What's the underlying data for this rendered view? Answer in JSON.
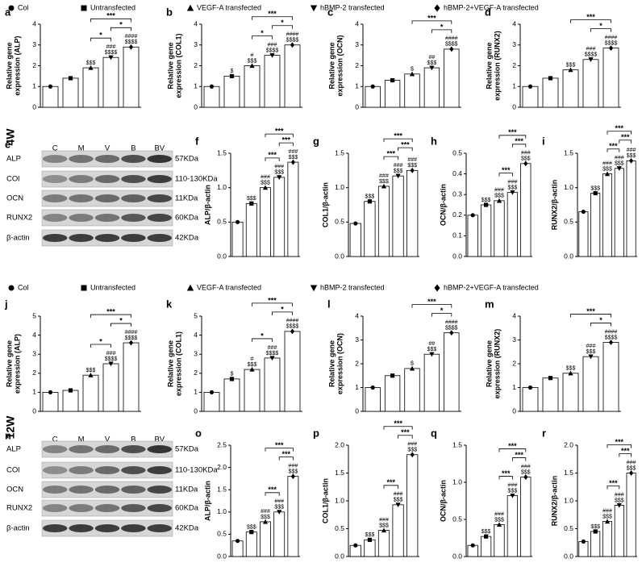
{
  "legend": [
    "Col",
    "Untransfected",
    "VEGF-A transfected",
    "hBMP-2 transfected",
    "hBMP-2+VEGF-A transfected"
  ],
  "row_labels": [
    "4W",
    "12W"
  ],
  "blots": [
    {
      "panel": "e",
      "lanes": [
        "C",
        "M",
        "V",
        "B",
        "BV"
      ],
      "proteins": [
        "ALP",
        "COl",
        "OCN",
        "RUNX2",
        "β-actin"
      ],
      "sizes": [
        "57KDa",
        "110-130KDa",
        "11KDa",
        "60KDa",
        "42KDa"
      ]
    },
    {
      "panel": "n",
      "lanes": [
        "C",
        "M",
        "V",
        "B",
        "BV"
      ],
      "proteins": [
        "ALP",
        "COl",
        "OCN",
        "RUNX2",
        "β-actin"
      ],
      "sizes": [
        "57KDa",
        "110-130KDa",
        "11KDa",
        "60KDa",
        "42KDa"
      ]
    }
  ],
  "chart_data": [
    {
      "type": "bar",
      "panel": "a",
      "ylabel": [
        "Relative gene",
        "expression (ALP)"
      ],
      "ylim": [
        0,
        4
      ],
      "yticks": [
        0,
        1,
        2,
        3,
        4
      ],
      "values": [
        1.0,
        1.4,
        1.9,
        2.4,
        2.9
      ],
      "bar_labels": [
        [],
        [],
        [
          "$$$"
        ],
        [
          "###",
          "$$$$"
        ],
        [
          "####",
          "$$$$"
        ]
      ],
      "brackets": [
        {
          "from": 2,
          "to": 3,
          "label": "*"
        },
        {
          "from": 3,
          "to": 4,
          "label": "*"
        },
        {
          "from": 2,
          "to": 4,
          "label": "***"
        }
      ]
    },
    {
      "type": "bar",
      "panel": "b",
      "ylabel": [
        "Relative gene",
        "expression (COL1)"
      ],
      "ylim": [
        0,
        4
      ],
      "yticks": [
        0,
        1,
        2,
        3,
        4
      ],
      "values": [
        1.0,
        1.5,
        2.0,
        2.5,
        3.0
      ],
      "bar_labels": [
        [],
        [
          "$"
        ],
        [
          "#",
          "$$$"
        ],
        [
          "###",
          "$$$$"
        ],
        [
          "####",
          "$$$$"
        ]
      ],
      "brackets": [
        {
          "from": 2,
          "to": 3,
          "label": "*"
        },
        {
          "from": 3,
          "to": 4,
          "label": "*"
        },
        {
          "from": 2,
          "to": 4,
          "label": "***"
        }
      ]
    },
    {
      "type": "bar",
      "panel": "c",
      "ylabel": [
        "Relative gene",
        "expression (OCN)"
      ],
      "ylim": [
        0,
        4
      ],
      "yticks": [
        0,
        1,
        2,
        3,
        4
      ],
      "values": [
        1.0,
        1.3,
        1.6,
        1.9,
        2.8
      ],
      "bar_labels": [
        [],
        [],
        [
          "$"
        ],
        [
          "##",
          "$$$"
        ],
        [
          "####",
          "$$$$"
        ]
      ],
      "brackets": [
        {
          "from": 3,
          "to": 4,
          "label": "*"
        },
        {
          "from": 2,
          "to": 4,
          "label": "***"
        }
      ]
    },
    {
      "type": "bar",
      "panel": "d",
      "ylabel": [
        "Relative gene",
        "expression (RUNX2)"
      ],
      "ylim": [
        0,
        4
      ],
      "yticks": [
        0,
        1,
        2,
        3,
        4
      ],
      "values": [
        1.0,
        1.4,
        1.8,
        2.3,
        2.85
      ],
      "bar_labels": [
        [],
        [],
        [
          "$$$"
        ],
        [
          "###",
          "$$$$"
        ],
        [
          "####",
          "$$$$"
        ]
      ],
      "brackets": [
        {
          "from": 3,
          "to": 4,
          "label": "*"
        },
        {
          "from": 2,
          "to": 4,
          "label": "***"
        }
      ]
    },
    {
      "type": "bar",
      "panel": "f",
      "ylabel": [
        "ALP/β-actin"
      ],
      "ylim": [
        0,
        1.5
      ],
      "yticks": [
        {
          "value": 0,
          "label": "0.0"
        },
        0.5,
        {
          "value": 1,
          "label": "1.0"
        },
        1.5
      ],
      "values": [
        0.5,
        0.77,
        1.0,
        1.15,
        1.37
      ],
      "bar_labels": [
        [],
        [
          "$$$"
        ],
        [
          "###",
          "$$$"
        ],
        [
          "###",
          "$$$"
        ],
        [
          "###",
          "$$$"
        ]
      ],
      "brackets": [
        {
          "from": 2,
          "to": 3,
          "label": "***"
        },
        {
          "from": 3,
          "to": 4,
          "label": "***"
        },
        {
          "from": 2,
          "to": 4,
          "label": "***"
        }
      ]
    },
    {
      "type": "bar",
      "panel": "g",
      "ylabel": [
        "COL1/β-actin"
      ],
      "ylim": [
        0,
        1.5
      ],
      "yticks": [
        {
          "value": 0,
          "label": "0.0"
        },
        0.5,
        {
          "value": 1,
          "label": "1.0"
        },
        1.5
      ],
      "values": [
        0.48,
        0.8,
        1.02,
        1.17,
        1.25
      ],
      "bar_labels": [
        [],
        [
          "$$$"
        ],
        [
          "###",
          "$$$"
        ],
        [
          "###",
          "$$$"
        ],
        [
          "###",
          "$$$"
        ]
      ],
      "brackets": [
        {
          "from": 2,
          "to": 3,
          "label": "***"
        },
        {
          "from": 3,
          "to": 4,
          "label": "***"
        },
        {
          "from": 2,
          "to": 4,
          "label": "***"
        }
      ]
    },
    {
      "type": "bar",
      "panel": "h",
      "ylabel": [
        "OCN/β-actin"
      ],
      "ylim": [
        0,
        0.5
      ],
      "yticks": [
        {
          "value": 0,
          "label": "0.0"
        },
        0.1,
        0.2,
        0.3,
        0.4,
        0.5
      ],
      "values": [
        0.2,
        0.25,
        0.27,
        0.31,
        0.45
      ],
      "bar_labels": [
        [],
        [
          "$$$"
        ],
        [
          "###",
          "$$$"
        ],
        [
          "###",
          "$$$"
        ],
        [
          "###",
          "$$$"
        ]
      ],
      "brackets": [
        {
          "from": 2,
          "to": 3,
          "label": "***"
        },
        {
          "from": 3,
          "to": 4,
          "label": "***"
        },
        {
          "from": 2,
          "to": 4,
          "label": "***"
        }
      ]
    },
    {
      "type": "bar",
      "panel": "i",
      "ylabel": [
        "RUNX2/β-actin"
      ],
      "ylim": [
        0,
        1.5
      ],
      "yticks": [
        {
          "value": 0,
          "label": "0.0"
        },
        0.5,
        {
          "value": 1,
          "label": "1.0"
        },
        1.5
      ],
      "values": [
        0.65,
        0.92,
        1.2,
        1.28,
        1.39
      ],
      "bar_labels": [
        [],
        [
          "$$$"
        ],
        [
          "###",
          "$$$"
        ],
        [
          "###",
          "$$$"
        ],
        [
          "###",
          "$$$"
        ]
      ],
      "brackets": [
        {
          "from": 2,
          "to": 3,
          "label": "***"
        },
        {
          "from": 3,
          "to": 4,
          "label": "***"
        },
        {
          "from": 2,
          "to": 4,
          "label": "***"
        }
      ]
    },
    {
      "type": "bar",
      "panel": "j",
      "ylabel": [
        "Relative gene",
        "expression (ALP)"
      ],
      "ylim": [
        0,
        5
      ],
      "yticks": [
        0,
        1,
        2,
        3,
        4,
        5
      ],
      "values": [
        1.0,
        1.1,
        1.9,
        2.5,
        3.6
      ],
      "bar_labels": [
        [],
        [],
        [
          "$$$"
        ],
        [
          "###",
          "$$$$"
        ],
        [
          "####",
          "$$$$"
        ]
      ],
      "brackets": [
        {
          "from": 2,
          "to": 3,
          "label": "*"
        },
        {
          "from": 3,
          "to": 4,
          "label": "*"
        },
        {
          "from": 2,
          "to": 4,
          "label": "***"
        }
      ]
    },
    {
      "type": "bar",
      "panel": "k",
      "ylabel": [
        "Relative gene",
        "expression (COL1)"
      ],
      "ylim": [
        0,
        5
      ],
      "yticks": [
        0,
        1,
        2,
        3,
        4,
        5
      ],
      "values": [
        1.0,
        1.7,
        2.2,
        2.8,
        4.2
      ],
      "bar_labels": [
        [],
        [
          "$"
        ],
        [
          "#",
          "$$$"
        ],
        [
          "###",
          "$$$$"
        ],
        [
          "####",
          "$$$$"
        ]
      ],
      "brackets": [
        {
          "from": 2,
          "to": 3,
          "label": "*"
        },
        {
          "from": 3,
          "to": 4,
          "label": "*"
        },
        {
          "from": 2,
          "to": 4,
          "label": "***"
        }
      ]
    },
    {
      "type": "bar",
      "panel": "l",
      "ylabel": [
        "Relative gene",
        "expression (OCN)"
      ],
      "ylim": [
        0,
        4
      ],
      "yticks": [
        0,
        1,
        2,
        3,
        4
      ],
      "values": [
        1.0,
        1.5,
        1.8,
        2.4,
        3.3
      ],
      "bar_labels": [
        [],
        [],
        [
          "$"
        ],
        [
          "##",
          "$$$"
        ],
        [
          "####",
          "$$$$"
        ]
      ],
      "brackets": [
        {
          "from": 3,
          "to": 4,
          "label": "*"
        },
        {
          "from": 2,
          "to": 4,
          "label": "***"
        }
      ]
    },
    {
      "type": "bar",
      "panel": "m",
      "ylabel": [
        "Relative gene",
        "expression (RUNX2)"
      ],
      "ylim": [
        0,
        4
      ],
      "yticks": [
        0,
        1,
        2,
        3,
        4
      ],
      "values": [
        1.0,
        1.4,
        1.6,
        2.3,
        2.9
      ],
      "bar_labels": [
        [],
        [],
        [
          "$$$"
        ],
        [
          "###",
          "$$$"
        ],
        [
          "####",
          "$$$$"
        ]
      ],
      "brackets": [
        {
          "from": 3,
          "to": 4,
          "label": "*"
        },
        {
          "from": 2,
          "to": 4,
          "label": "***"
        }
      ]
    },
    {
      "type": "bar",
      "panel": "o",
      "ylabel": [
        "ALP/β-actin"
      ],
      "ylim": [
        0,
        2.5
      ],
      "yticks": [
        {
          "value": 0,
          "label": "0.0"
        },
        0.5,
        {
          "value": 1,
          "label": "1.0"
        },
        1.5,
        {
          "value": 2,
          "label": "2.0"
        },
        2.5
      ],
      "values": [
        0.35,
        0.55,
        0.78,
        1.0,
        1.8
      ],
      "bar_labels": [
        [],
        [
          "$$$"
        ],
        [
          "###",
          "$$$"
        ],
        [
          "###",
          "$$$"
        ],
        [
          "###",
          "$$$"
        ]
      ],
      "brackets": [
        {
          "from": 2,
          "to": 3,
          "label": "***"
        },
        {
          "from": 3,
          "to": 4,
          "label": "***"
        },
        {
          "from": 2,
          "to": 4,
          "label": "***"
        }
      ]
    },
    {
      "type": "bar",
      "panel": "p",
      "ylabel": [
        "COL1/β-actin"
      ],
      "ylim": [
        0,
        2
      ],
      "yticks": [
        {
          "value": 0,
          "label": "0.0"
        },
        0.5,
        {
          "value": 1,
          "label": "1.0"
        },
        1.5,
        {
          "value": 2,
          "label": "2.0"
        }
      ],
      "values": [
        0.2,
        0.3,
        0.47,
        0.93,
        1.83
      ],
      "bar_labels": [
        [],
        [
          "$$$"
        ],
        [
          "###",
          "$$$"
        ],
        [
          "###",
          "$$$"
        ],
        [
          "###",
          "$$$"
        ]
      ],
      "brackets": [
        {
          "from": 2,
          "to": 3,
          "label": "***"
        },
        {
          "from": 3,
          "to": 4,
          "label": "***"
        },
        {
          "from": 2,
          "to": 4,
          "label": "***"
        }
      ]
    },
    {
      "type": "bar",
      "panel": "q",
      "ylabel": [
        "OCN/β-actin"
      ],
      "ylim": [
        0,
        1.5
      ],
      "yticks": [
        {
          "value": 0,
          "label": "0.0"
        },
        0.5,
        {
          "value": 1,
          "label": "1.0"
        },
        1.5
      ],
      "values": [
        0.15,
        0.27,
        0.43,
        0.82,
        1.07
      ],
      "bar_labels": [
        [],
        [
          "$$$"
        ],
        [
          "###",
          "$$$"
        ],
        [
          "###",
          "$$$"
        ],
        [
          "###",
          "$$$"
        ]
      ],
      "brackets": [
        {
          "from": 2,
          "to": 3,
          "label": "***"
        },
        {
          "from": 3,
          "to": 4,
          "label": "***"
        },
        {
          "from": 2,
          "to": 4,
          "label": "***"
        }
      ]
    },
    {
      "type": "bar",
      "panel": "r",
      "ylabel": [
        "RUNX2/β-actin"
      ],
      "ylim": [
        0,
        2
      ],
      "yticks": [
        {
          "value": 0,
          "label": "0.0"
        },
        0.5,
        {
          "value": 1,
          "label": "1.0"
        },
        1.5,
        {
          "value": 2,
          "label": "2.0"
        }
      ],
      "values": [
        0.27,
        0.45,
        0.63,
        0.92,
        1.5
      ],
      "bar_labels": [
        [],
        [
          "$$$"
        ],
        [
          "###",
          "$$$"
        ],
        [
          "###",
          "$$$"
        ],
        [
          "###",
          "$$$"
        ]
      ],
      "brackets": [
        {
          "from": 2,
          "to": 3,
          "label": "***"
        },
        {
          "from": 3,
          "to": 4,
          "label": "***"
        },
        {
          "from": 2,
          "to": 4,
          "label": "***"
        }
      ]
    }
  ]
}
